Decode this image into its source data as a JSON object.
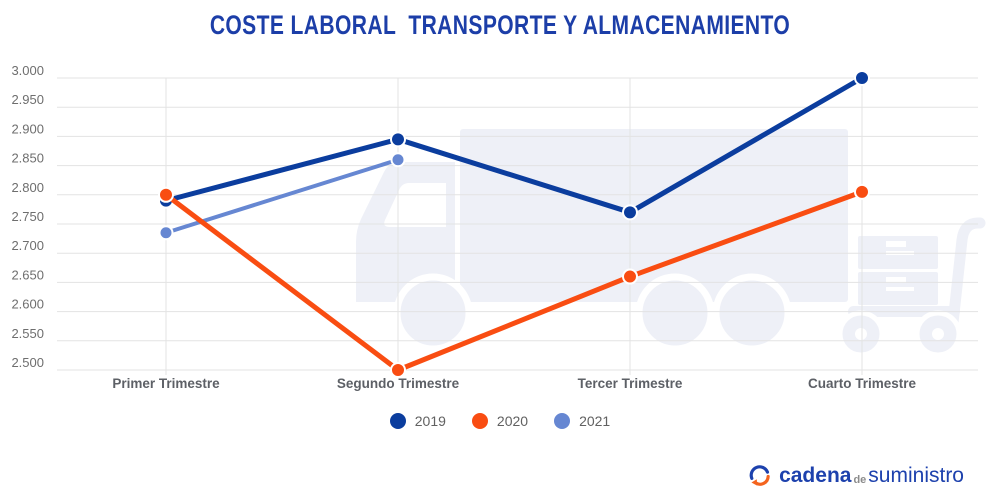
{
  "header": {
    "title": "COSTE LABORAL  TRANSPORTE Y ALMACENAMIENTO",
    "title_color": "#1c3ea8"
  },
  "chart_data": {
    "type": "line",
    "title": "COSTE LABORAL  TRANSPORTE Y ALMACENAMIENTO",
    "categories": [
      "Primer Trimestre",
      "Segundo Trimestre",
      "Tercer Trimestre",
      "Cuarto Trimestre"
    ],
    "series": [
      {
        "name": "2019",
        "color": "#0b3d9e",
        "values": [
          2.79,
          2.895,
          2.77,
          3.0
        ]
      },
      {
        "name": "2020",
        "color": "#f94d12",
        "values": [
          2.8,
          2.5,
          2.66,
          2.805
        ]
      },
      {
        "name": "2021",
        "color": "#6687d2",
        "values": [
          2.735,
          2.86,
          null,
          null
        ]
      }
    ],
    "y_axis": {
      "min": 2.5,
      "max": 3.0,
      "step": 0.05,
      "tick_labels": [
        "2.500",
        "2.550",
        "2.600",
        "2.650",
        "2.700",
        "2.750",
        "2.800",
        "2.850",
        "2.900",
        "2.950",
        "3.000"
      ]
    },
    "xlabel": "",
    "ylabel": "",
    "grid": true,
    "legend_position": "bottom",
    "watermarks": [
      "truck-icon",
      "hand-truck-icon"
    ]
  },
  "footer": {
    "brand": {
      "icon": "circular-arrows-icon",
      "part_cadena": "cadena",
      "part_de": "de",
      "part_suministro": "suministro",
      "blue": "#1d41ad",
      "orange": "#f4641e",
      "de_color": "#8c8c8c"
    }
  }
}
